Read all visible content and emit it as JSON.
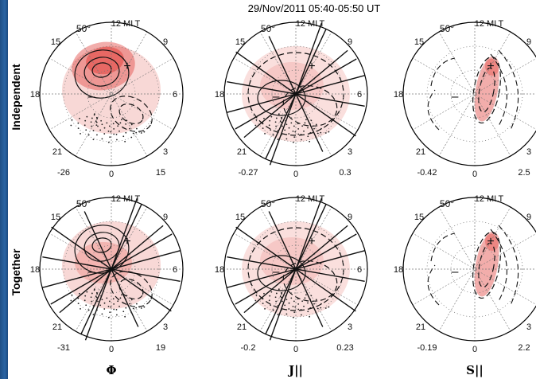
{
  "title": "29/Nov/2011 05:40-05:50 UT",
  "row_labels": [
    "Independent",
    "Together"
  ],
  "col_labels": [
    "Φ",
    "J||",
    "S||"
  ],
  "dial": {
    "lat_label": "50°",
    "top": "12 MLT",
    "upper_left": "15",
    "upper_right": "9",
    "left": "18",
    "right": "6",
    "lower_left": "21",
    "lower_right": "3",
    "bottom": "0"
  },
  "panels": [
    {
      "id": "independent-phi",
      "min": "-26",
      "max": "15",
      "variable": "phi",
      "rays": false
    },
    {
      "id": "independent-j",
      "min": "-0.27",
      "max": "0.3",
      "variable": "j",
      "rays": true
    },
    {
      "id": "independent-s",
      "min": "-0.42",
      "max": "2.5",
      "variable": "s",
      "rays": false
    },
    {
      "id": "together-phi",
      "min": "-31",
      "max": "19",
      "variable": "phi",
      "rays": true
    },
    {
      "id": "together-j",
      "min": "-0.2",
      "max": "0.23",
      "variable": "j",
      "rays": true
    },
    {
      "id": "together-s",
      "min": "-0.19",
      "max": "2.2",
      "variable": "s",
      "rays": false
    }
  ],
  "colors": {
    "shade": "#e34a45",
    "shade_light": "#f3b8b4",
    "line": "#111111",
    "dotted": "#777777",
    "frame_left": "#1f4f86"
  }
}
